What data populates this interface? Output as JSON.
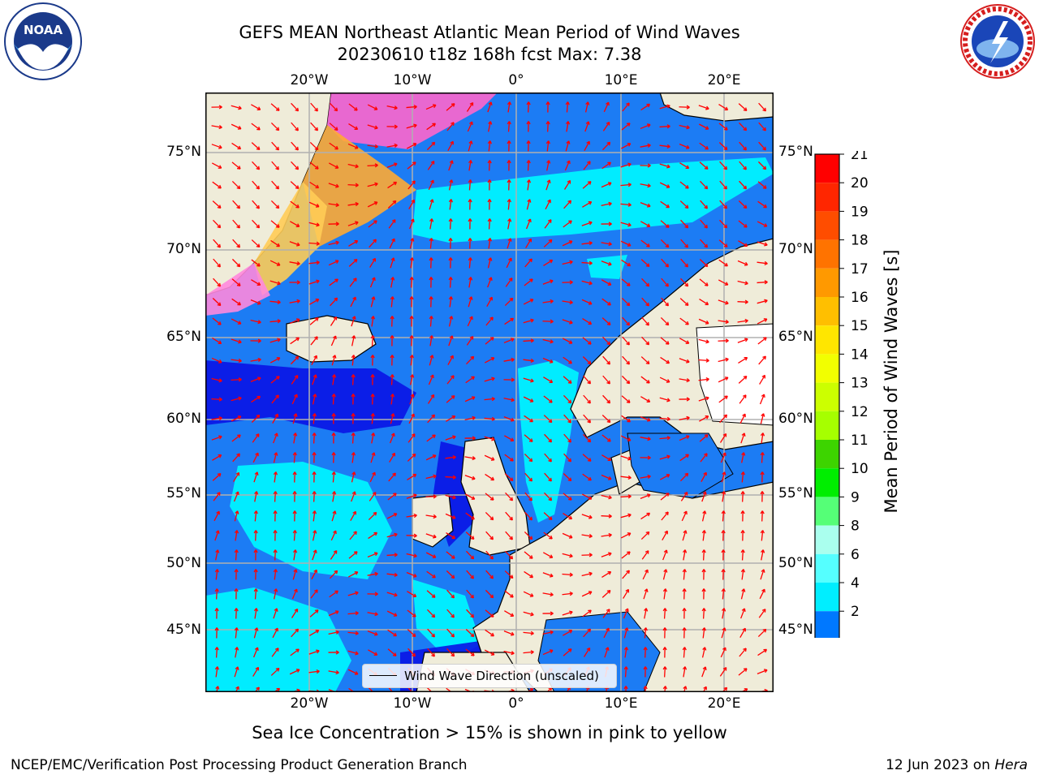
{
  "title": {
    "line1": "GEFS MEAN Northeast Atlantic Mean Period of Wind Waves",
    "line2": "20230610 t18z 168h fcst   Max: 7.38"
  },
  "axes": {
    "lon_ticks": [
      "20°W",
      "10°W",
      "0°",
      "10°E",
      "20°E"
    ],
    "lat_ticks": [
      "75°N",
      "70°N",
      "65°N",
      "60°N",
      "55°N",
      "50°N",
      "45°N"
    ]
  },
  "colorbar": {
    "label": "Mean Period of Wind Waves [s]",
    "ticks": [
      "21",
      "20",
      "19",
      "18",
      "17",
      "16",
      "15",
      "14",
      "13",
      "12",
      "11",
      "10",
      "9",
      "8",
      "6",
      "4",
      "2"
    ],
    "colors": [
      "#ff0000",
      "#ff2600",
      "#ff4d00",
      "#ff7300",
      "#ff9900",
      "#ffbf00",
      "#ffe600",
      "#f2ff00",
      "#ccff00",
      "#a6ff00",
      "#3dd400",
      "#00ee00",
      "#55ff77",
      "#aaffee",
      "#55ffff",
      "#00eeff",
      "#0078ff"
    ],
    "under_color": "#0000ff"
  },
  "legend": {
    "label": "Wind Wave Direction (unscaled)"
  },
  "caption": "Sea Ice Concentration > 15% is shown in pink to yellow",
  "footer": {
    "left": "NCEP/EMC/Verification Post Processing Product Generation Branch",
    "right_date": "12 Jun 2023 on ",
    "right_host": "Hera"
  },
  "logos": {
    "noaa": "NOAA",
    "nws": "NATIONAL WEATHER SERVICE"
  },
  "colors": {
    "land": "#efecd9",
    "ocean_base": "#1c7cf4",
    "ocean_light": "#00f2ff",
    "ocean_dark": "#0a14e6",
    "arrow": "#ff0000",
    "grid": "#b0b0b0"
  }
}
